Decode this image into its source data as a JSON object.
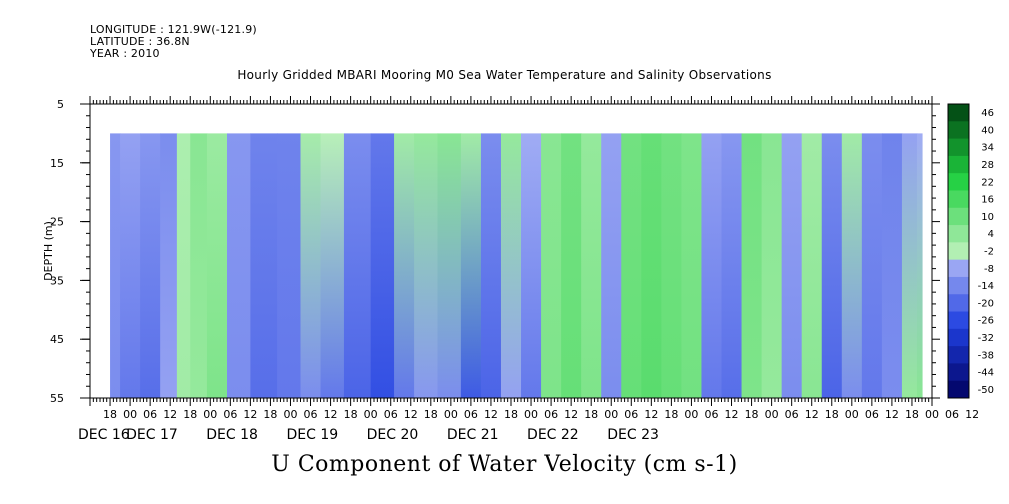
{
  "header": {
    "longitude": "LONGITUDE : 121.9W(-121.9)",
    "latitude": "LATITUDE : 36.8N",
    "year": "YEAR : 2010"
  },
  "chart_data": {
    "type": "heatmap",
    "title": "Hourly Gridded MBARI Mooring M0 Sea Water Temperature and Salinity Observations",
    "xlabel": "U Component of Water Velocity (cm s-1)",
    "ylabel": "DEPTH (m)",
    "yticks": [
      5,
      15,
      25,
      35,
      45,
      55
    ],
    "ylim": [
      5,
      55
    ],
    "y_inverted": true,
    "data_depth_range": [
      10,
      55
    ],
    "xlim_hours_from_dec16_12utc": [
      0,
      252
    ],
    "data_time_range_hours": [
      6,
      249
    ],
    "hour_tick_labels": [
      "18",
      "00",
      "06",
      "12",
      "18",
      "00",
      "06",
      "12",
      "18",
      "00",
      "06",
      "12",
      "18",
      "00",
      "06",
      "12",
      "18",
      "00",
      "06",
      "12",
      "18",
      "00",
      "06",
      "12",
      "18",
      "00",
      "06",
      "12",
      "18",
      "00",
      "06",
      "12",
      "18",
      "00",
      "06",
      "12",
      "18",
      "00",
      "06",
      "12",
      "18",
      "00",
      "06",
      "12"
    ],
    "date_labels": [
      "DEC 16",
      "DEC 17",
      "DEC 18",
      "DEC 19",
      "DEC 20",
      "DEC 21",
      "DEC 22",
      "DEC 23"
    ],
    "colorbar": {
      "labels": [
        "46",
        "40",
        "34",
        "28",
        "22",
        "16",
        "10",
        "4",
        "-2",
        "-8",
        "-14",
        "-20",
        "-26",
        "-32",
        "-38",
        "-44",
        "-50"
      ],
      "range": [
        -50,
        52
      ],
      "colors": {
        "neg_max": "#000060",
        "neg_mid": "#2040e0",
        "neg_min": "#b8c0f8",
        "pos_min": "#b8f0b8",
        "pos_mid": "#20d040",
        "pos_max": "#004010"
      }
    },
    "columns": [
      {
        "t": 6,
        "top": -8,
        "bot": -10
      },
      {
        "t": 12,
        "top": -6,
        "bot": -14
      },
      {
        "t": 18,
        "top": -8,
        "bot": -16
      },
      {
        "t": 24,
        "top": -10,
        "bot": -6
      },
      {
        "t": 28,
        "top": 2,
        "bot": 4
      },
      {
        "t": 32,
        "top": 8,
        "bot": 6
      },
      {
        "t": 38,
        "top": 5,
        "bot": 10
      },
      {
        "t": 44,
        "top": -8,
        "bot": -10
      },
      {
        "t": 52,
        "top": -12,
        "bot": -16
      },
      {
        "t": 60,
        "top": -12,
        "bot": -14
      },
      {
        "t": 66,
        "top": 3,
        "bot": -10
      },
      {
        "t": 72,
        "top": 0,
        "bot": -14
      },
      {
        "t": 80,
        "top": -10,
        "bot": -18
      },
      {
        "t": 88,
        "top": -14,
        "bot": -22
      },
      {
        "t": 94,
        "top": 4,
        "bot": -14
      },
      {
        "t": 100,
        "top": 6,
        "bot": -8
      },
      {
        "t": 108,
        "top": 8,
        "bot": -10
      },
      {
        "t": 114,
        "top": 4,
        "bot": -20
      },
      {
        "t": 120,
        "top": -10,
        "bot": -18
      },
      {
        "t": 126,
        "top": 6,
        "bot": -6
      },
      {
        "t": 132,
        "top": -4,
        "bot": -14
      },
      {
        "t": 138,
        "top": 8,
        "bot": 10
      },
      {
        "t": 144,
        "top": 12,
        "bot": 14
      },
      {
        "t": 150,
        "top": 6,
        "bot": 10
      },
      {
        "t": 156,
        "top": -6,
        "bot": -10
      },
      {
        "t": 162,
        "top": 12,
        "bot": 14
      },
      {
        "t": 168,
        "top": 14,
        "bot": 16
      },
      {
        "t": 174,
        "top": 12,
        "bot": 14
      },
      {
        "t": 180,
        "top": 10,
        "bot": 12
      },
      {
        "t": 186,
        "top": -6,
        "bot": -14
      },
      {
        "t": 192,
        "top": -8,
        "bot": -16
      },
      {
        "t": 198,
        "top": 12,
        "bot": 10
      },
      {
        "t": 204,
        "top": 8,
        "bot": 6
      },
      {
        "t": 210,
        "top": -6,
        "bot": -10
      },
      {
        "t": 216,
        "top": 4,
        "bot": 8
      },
      {
        "t": 222,
        "top": -10,
        "bot": -18
      },
      {
        "t": 228,
        "top": 4,
        "bot": -10
      },
      {
        "t": 234,
        "top": -10,
        "bot": -14
      },
      {
        "t": 240,
        "top": -12,
        "bot": -10
      },
      {
        "t": 246,
        "top": -6,
        "bot": 6
      },
      {
        "t": 249,
        "top": -4,
        "bot": 8
      }
    ]
  }
}
